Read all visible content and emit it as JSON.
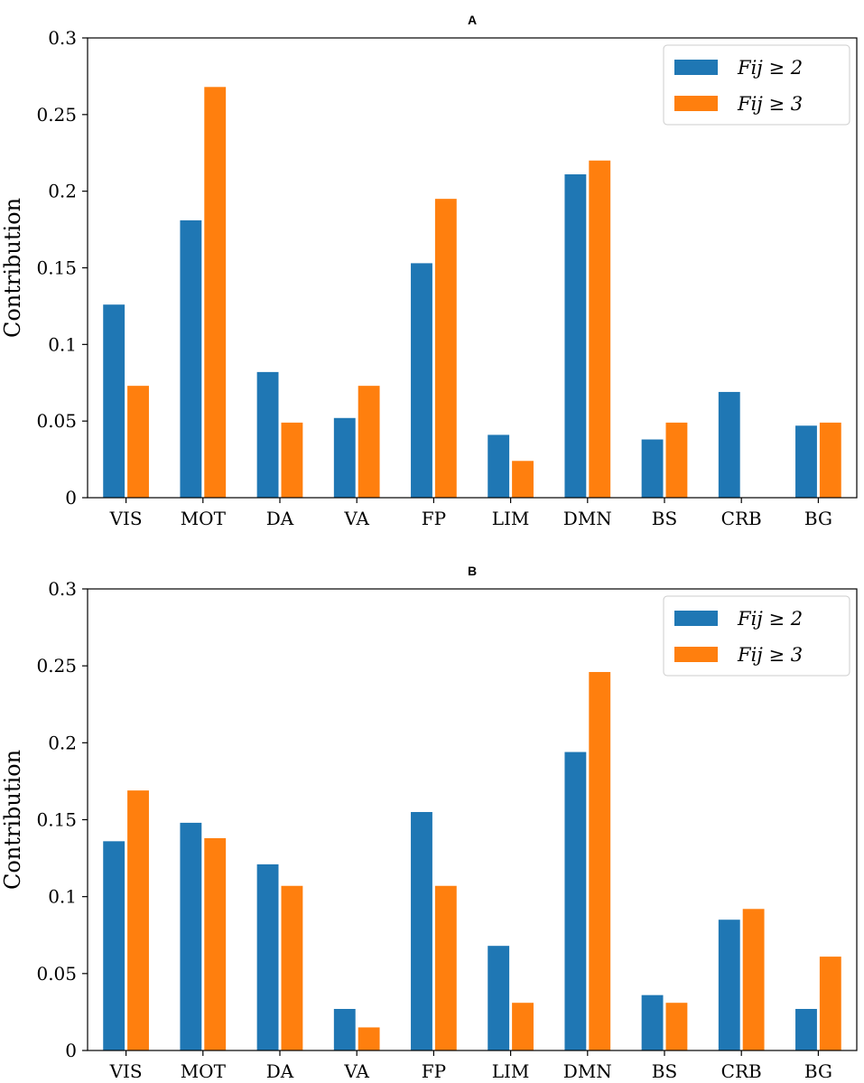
{
  "chart_data": [
    {
      "type": "bar",
      "title": "A",
      "xlabel": "",
      "ylabel": "Contribution",
      "ylim": [
        0,
        0.3
      ],
      "yticks": [
        "0",
        "0.05",
        "0.1",
        "0.15",
        "0.2",
        "0.25",
        "0.3"
      ],
      "grid": false,
      "legend_position": "top-right",
      "categories": [
        "VIS",
        "MOT",
        "DA",
        "VA",
        "FP",
        "LIM",
        "DMN",
        "BS",
        "CRB",
        "BG"
      ],
      "series": [
        {
          "name": "F_ij ≥ 2",
          "legend_label": "Fij ≥ 2",
          "color": "#1f77b4",
          "values": [
            0.126,
            0.181,
            0.082,
            0.052,
            0.153,
            0.041,
            0.211,
            0.038,
            0.069,
            0.047
          ]
        },
        {
          "name": "F_ij ≥ 3",
          "legend_label": "Fij ≥ 3",
          "color": "#ff7f0e",
          "values": [
            0.073,
            0.268,
            0.049,
            0.073,
            0.195,
            0.024,
            0.22,
            0.049,
            0.0,
            0.049
          ]
        }
      ]
    },
    {
      "type": "bar",
      "title": "B",
      "xlabel": "",
      "ylabel": "Contribution",
      "ylim": [
        0,
        0.3
      ],
      "yticks": [
        "0",
        "0.05",
        "0.1",
        "0.15",
        "0.2",
        "0.25",
        "0.3"
      ],
      "grid": false,
      "legend_position": "top-right",
      "categories": [
        "VIS",
        "MOT",
        "DA",
        "VA",
        "FP",
        "LIM",
        "DMN",
        "BS",
        "CRB",
        "BG"
      ],
      "series": [
        {
          "name": "F_ij ≥ 2",
          "legend_label": "Fij ≥ 2",
          "color": "#1f77b4",
          "values": [
            0.136,
            0.148,
            0.121,
            0.027,
            0.155,
            0.068,
            0.194,
            0.036,
            0.085,
            0.027
          ]
        },
        {
          "name": "F_ij ≥ 3",
          "legend_label": "Fij ≥ 3",
          "color": "#ff7f0e",
          "values": [
            0.169,
            0.138,
            0.107,
            0.015,
            0.107,
            0.031,
            0.246,
            0.031,
            0.092,
            0.061
          ]
        }
      ]
    }
  ]
}
